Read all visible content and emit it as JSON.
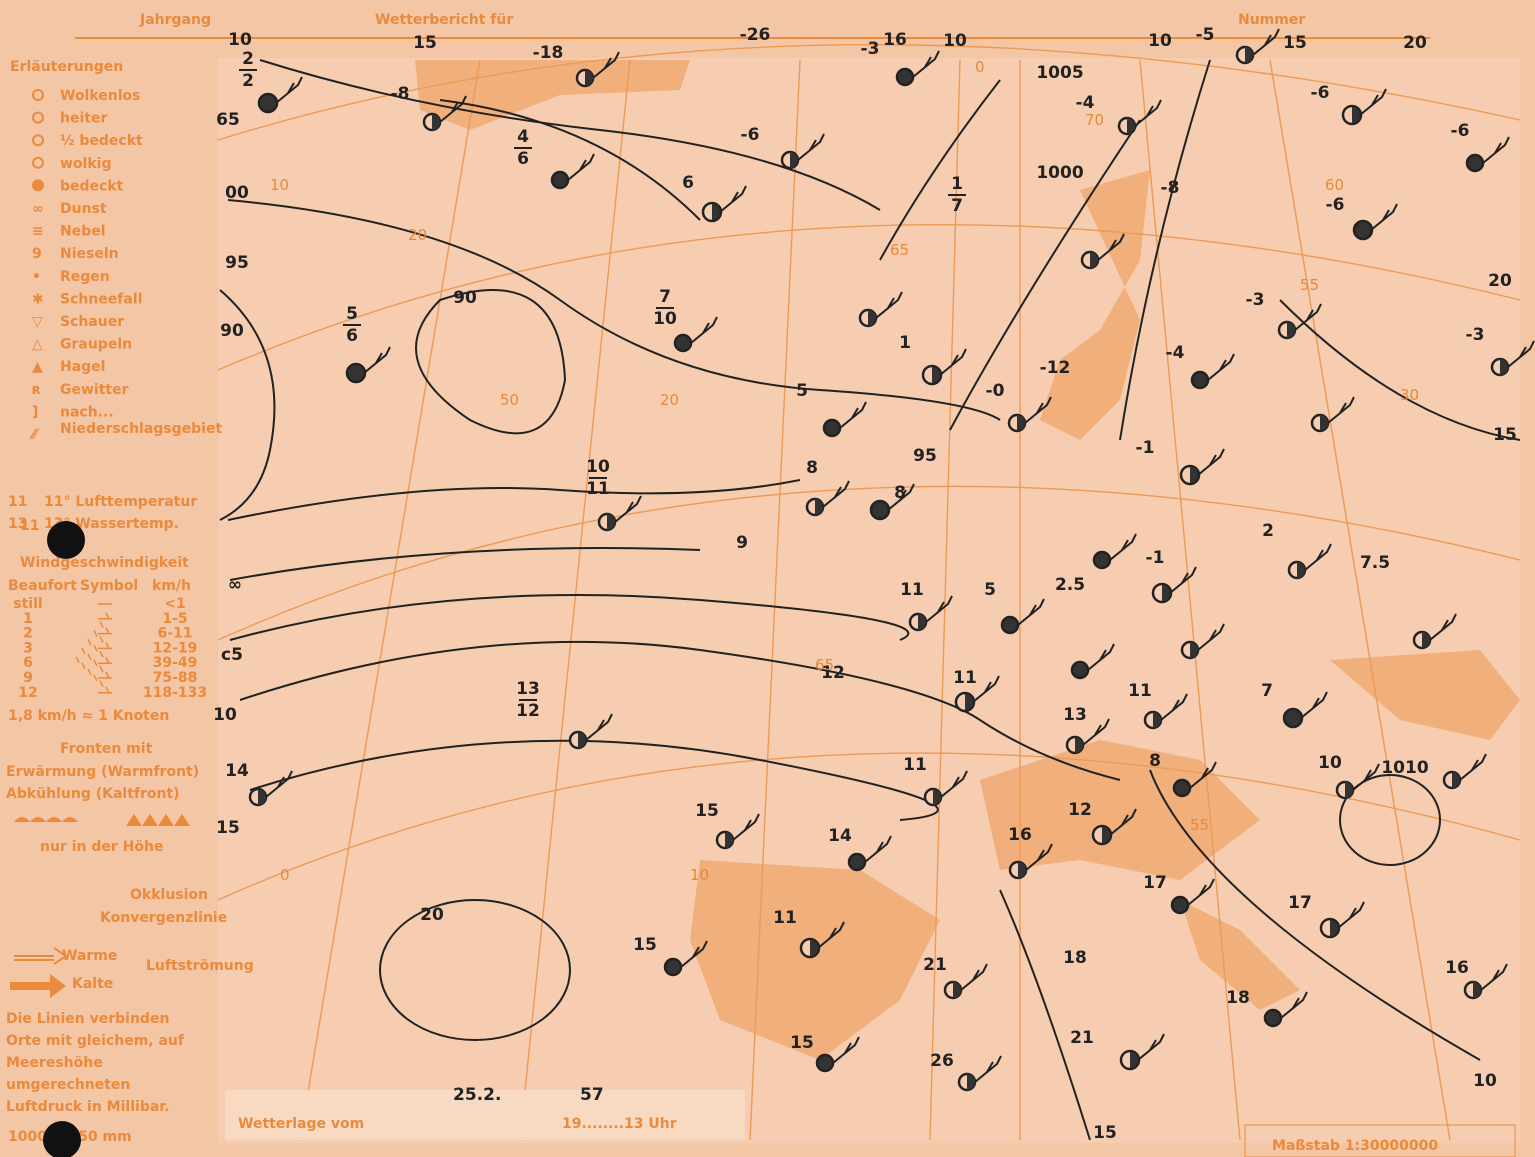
{
  "header": {
    "jahrgang": "Jahrgang",
    "wetterbericht": "Wetterbericht für",
    "nummer": "Nummer"
  },
  "legend": {
    "title": "Erläuterungen",
    "items": [
      "Wolkenlos",
      "heiter",
      "½ bedeckt",
      "wolkig",
      "bedeckt",
      "Dunst",
      "Nebel",
      "Nieseln",
      "Regen",
      "Schneefall",
      "Schauer",
      "Graupeln",
      "Hagel",
      "Gewitter",
      "nach...",
      "Niederschlagsgebiet"
    ],
    "temperature": [
      {
        "code": "11",
        "text": "11° Lufttemperatur"
      },
      {
        "code": "13",
        "text": "13° Wassertemp."
      }
    ],
    "wind": {
      "title": "Windgeschwindigkeit",
      "headers": [
        "Beaufort",
        "Symbol",
        "km/h"
      ],
      "rows": [
        [
          "still",
          "<1"
        ],
        [
          "1",
          "1-5"
        ],
        [
          "2",
          "6-11"
        ],
        [
          "3",
          "12-19"
        ],
        [
          "6",
          "39-49"
        ],
        [
          "9",
          "75-88"
        ],
        [
          "12",
          "118-133"
        ]
      ],
      "note": "1,8 km/h ≈ 1 Knoten"
    },
    "fronts": {
      "title": "Fronten mit",
      "warm": "Erwärmung (Warmfront)",
      "cold": "Abkühlung (Kaltfront)",
      "height": "nur in der Höhe",
      "occlusion": "Okklusion",
      "convergence": "Konvergenzlinie",
      "warm_flow": "Warme",
      "cold_flow": "Kalte",
      "flow": "Luftströmung"
    },
    "isobar_note": "Die Linien verbinden Orte mit gleichem, auf Meereshöhe umgerechneten Luftdruck in Millibar.",
    "pressure_note": "1000 ≈ 750 mm"
  },
  "footer": {
    "label": "Wetterlage vom",
    "date": "25.2.",
    "year": "57",
    "time": "19........13 Uhr",
    "scale": "Maßstab 1:30000000"
  },
  "map_labels": [
    "10",
    "15",
    "-18",
    "-8",
    "-26",
    "-3",
    "16",
    "10",
    "1005",
    "10",
    "-5",
    "15",
    "20",
    "-6",
    "-6",
    "-6",
    "6",
    "-4",
    "1000",
    "-8",
    "-6",
    "20",
    "-3",
    "-3",
    "95",
    "90",
    "00",
    "65",
    "90",
    "5",
    "1",
    "-0",
    "-12",
    "-4",
    "-1",
    "15",
    "95",
    "8",
    "8",
    "9",
    "2",
    "7.5",
    "-1",
    "5",
    "2.5",
    "11",
    "c5",
    "∞",
    "12",
    "11",
    "13",
    "11",
    "7",
    "10",
    "1010",
    "10",
    "14",
    "8",
    "11",
    "15",
    "12",
    "16",
    "14",
    "15",
    "17",
    "17",
    "11",
    "20",
    "15",
    "21",
    "18",
    "16",
    "18",
    "21",
    "15",
    "26",
    "10",
    "15"
  ],
  "fractions": [
    {
      "top": "5",
      "bottom": "6"
    },
    {
      "top": "7",
      "bottom": "10"
    },
    {
      "top": "10",
      "bottom": "11"
    },
    {
      "top": "13",
      "bottom": "12"
    },
    {
      "top": "4",
      "bottom": "6"
    },
    {
      "top": "1",
      "bottom": "7"
    },
    {
      "top": "2",
      "bottom": "2"
    }
  ],
  "grid_labels": [
    "70",
    "65",
    "60",
    "55",
    "50",
    "20",
    "10",
    "0",
    "30",
    "20",
    "10",
    "0",
    "55",
    "65"
  ]
}
